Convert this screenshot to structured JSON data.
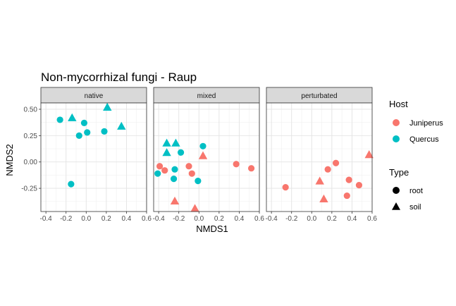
{
  "chart_data": {
    "type": "scatter",
    "title": "Non-mycorrhizal fungi - Raup",
    "xlabel": "NMDS1",
    "ylabel": "NMDS2",
    "xlim": [
      -0.45,
      0.6
    ],
    "ylim": [
      -0.47,
      0.56
    ],
    "x_ticks": [
      -0.4,
      -0.2,
      0.0,
      0.2,
      0.4,
      0.6
    ],
    "x_tick_labels": [
      "-0.4",
      "-0.2",
      "0.0",
      "0.2",
      "0.4",
      "0.6"
    ],
    "y_ticks": [
      -0.25,
      0.0,
      0.25,
      0.5
    ],
    "y_tick_labels": [
      "-0.25",
      "0.00",
      "0.25",
      "0.50"
    ],
    "grid": true,
    "facets": [
      "native",
      "mixed",
      "perturbated"
    ],
    "legend": {
      "placement": "right",
      "color": {
        "title": "Host",
        "entries": [
          {
            "label": "Juniperus",
            "color": "#F8766D"
          },
          {
            "label": "Quercus",
            "color": "#00BFC4"
          }
        ]
      },
      "shape": {
        "title": "Type",
        "entries": [
          {
            "label": "root",
            "shape": "circle"
          },
          {
            "label": "soil",
            "shape": "triangle"
          }
        ]
      }
    },
    "points": [
      {
        "facet": "native",
        "host": "Quercus",
        "type": "root",
        "x": -0.26,
        "y": 0.4
      },
      {
        "facet": "native",
        "host": "Quercus",
        "type": "root",
        "x": -0.02,
        "y": 0.37
      },
      {
        "facet": "native",
        "host": "Quercus",
        "type": "root",
        "x": 0.01,
        "y": 0.28
      },
      {
        "facet": "native",
        "host": "Quercus",
        "type": "root",
        "x": -0.07,
        "y": 0.25
      },
      {
        "facet": "native",
        "host": "Quercus",
        "type": "root",
        "x": 0.18,
        "y": 0.29
      },
      {
        "facet": "native",
        "host": "Quercus",
        "type": "root",
        "x": -0.15,
        "y": -0.21
      },
      {
        "facet": "native",
        "host": "Quercus",
        "type": "soil",
        "x": -0.14,
        "y": 0.42
      },
      {
        "facet": "native",
        "host": "Quercus",
        "type": "soil",
        "x": 0.21,
        "y": 0.52
      },
      {
        "facet": "native",
        "host": "Quercus",
        "type": "soil",
        "x": 0.35,
        "y": 0.34
      },
      {
        "facet": "mixed",
        "host": "Juniperus",
        "type": "root",
        "x": -0.39,
        "y": -0.04
      },
      {
        "facet": "mixed",
        "host": "Juniperus",
        "type": "root",
        "x": -0.34,
        "y": -0.08
      },
      {
        "facet": "mixed",
        "host": "Juniperus",
        "type": "root",
        "x": -0.1,
        "y": -0.04
      },
      {
        "facet": "mixed",
        "host": "Juniperus",
        "type": "root",
        "x": -0.07,
        "y": -0.11
      },
      {
        "facet": "mixed",
        "host": "Juniperus",
        "type": "root",
        "x": 0.37,
        "y": -0.02
      },
      {
        "facet": "mixed",
        "host": "Juniperus",
        "type": "root",
        "x": 0.52,
        "y": -0.06
      },
      {
        "facet": "mixed",
        "host": "Juniperus",
        "type": "soil",
        "x": 0.04,
        "y": 0.06
      },
      {
        "facet": "mixed",
        "host": "Juniperus",
        "type": "soil",
        "x": -0.24,
        "y": -0.37
      },
      {
        "facet": "mixed",
        "host": "Juniperus",
        "type": "soil",
        "x": -0.04,
        "y": -0.44
      },
      {
        "facet": "mixed",
        "host": "Quercus",
        "type": "root",
        "x": 0.04,
        "y": 0.15
      },
      {
        "facet": "mixed",
        "host": "Quercus",
        "type": "root",
        "x": -0.18,
        "y": 0.09
      },
      {
        "facet": "mixed",
        "host": "Quercus",
        "type": "root",
        "x": -0.41,
        "y": -0.11
      },
      {
        "facet": "mixed",
        "host": "Quercus",
        "type": "root",
        "x": -0.24,
        "y": -0.07
      },
      {
        "facet": "mixed",
        "host": "Quercus",
        "type": "root",
        "x": -0.25,
        "y": -0.16
      },
      {
        "facet": "mixed",
        "host": "Quercus",
        "type": "root",
        "x": -0.01,
        "y": -0.18
      },
      {
        "facet": "mixed",
        "host": "Quercus",
        "type": "soil",
        "x": -0.32,
        "y": 0.18
      },
      {
        "facet": "mixed",
        "host": "Quercus",
        "type": "soil",
        "x": -0.23,
        "y": 0.18
      },
      {
        "facet": "mixed",
        "host": "Quercus",
        "type": "soil",
        "x": -0.32,
        "y": 0.09
      },
      {
        "facet": "perturbated",
        "host": "Juniperus",
        "type": "root",
        "x": -0.26,
        "y": -0.24
      },
      {
        "facet": "perturbated",
        "host": "Juniperus",
        "type": "root",
        "x": 0.16,
        "y": -0.07
      },
      {
        "facet": "perturbated",
        "host": "Juniperus",
        "type": "root",
        "x": 0.24,
        "y": -0.01
      },
      {
        "facet": "perturbated",
        "host": "Juniperus",
        "type": "root",
        "x": 0.37,
        "y": -0.17
      },
      {
        "facet": "perturbated",
        "host": "Juniperus",
        "type": "root",
        "x": 0.35,
        "y": -0.32
      },
      {
        "facet": "perturbated",
        "host": "Juniperus",
        "type": "root",
        "x": 0.47,
        "y": -0.22
      },
      {
        "facet": "perturbated",
        "host": "Juniperus",
        "type": "soil",
        "x": 0.08,
        "y": -0.18
      },
      {
        "facet": "perturbated",
        "host": "Juniperus",
        "type": "soil",
        "x": 0.12,
        "y": -0.35
      },
      {
        "facet": "perturbated",
        "host": "Juniperus",
        "type": "soil",
        "x": 0.57,
        "y": 0.07
      }
    ]
  }
}
